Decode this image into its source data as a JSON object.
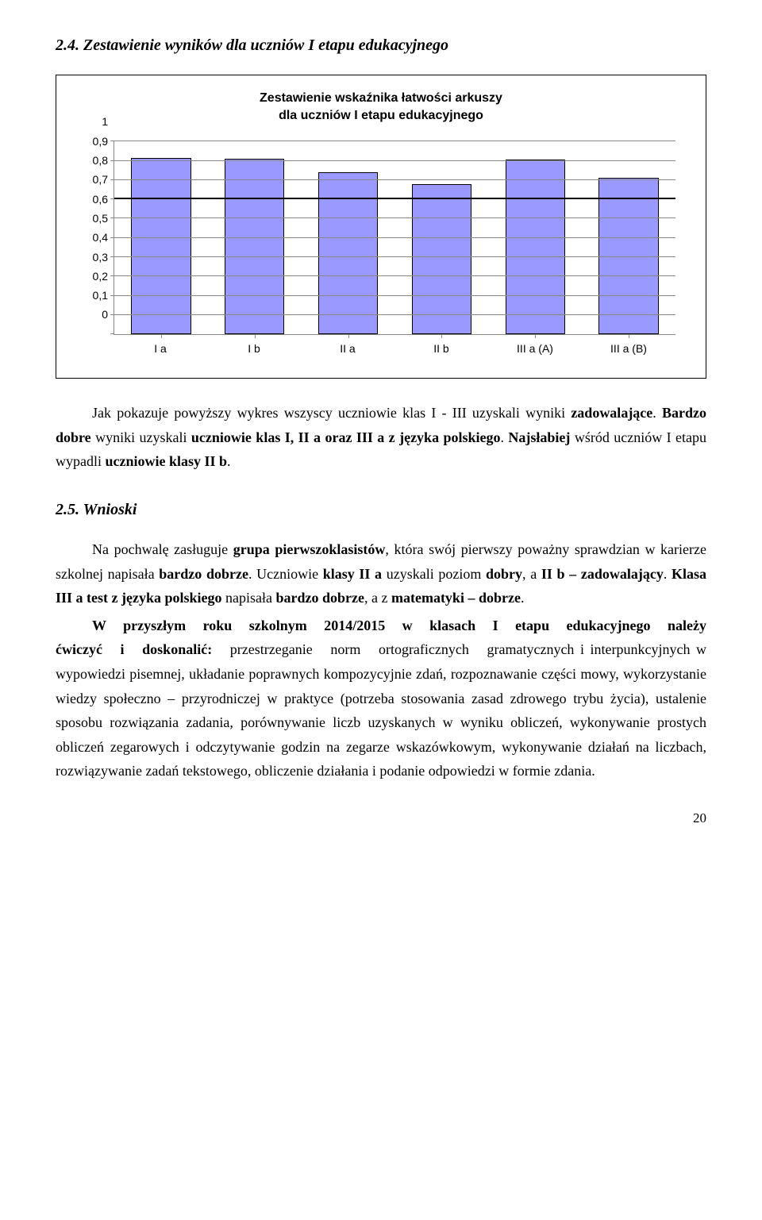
{
  "section_title": "2.4. Zestawienie wyników dla uczniów I etapu edukacyjnego",
  "chart": {
    "type": "bar",
    "title_line1": "Zestawienie wskaźnika łatwości arkuszy",
    "title_line2": "dla uczniów I etapu edukacyjnego",
    "categories": [
      "I a",
      "I b",
      "II a",
      "II b",
      "III a (A)",
      "III a (B)"
    ],
    "values": [
      0.915,
      0.91,
      0.84,
      0.78,
      0.905,
      0.81
    ],
    "bar_color": "#9999ff",
    "bar_border": "#000000",
    "ylim": [
      0,
      1
    ],
    "ytick_step": 0.1,
    "ytick_labels": [
      "0",
      "0,1",
      "0,2",
      "0,3",
      "0,4",
      "0,5",
      "0,6",
      "0,7",
      "0,8",
      "0,9",
      "1"
    ],
    "grid_color": "#888888",
    "target_line": 0.7,
    "target_line_color": "#000000",
    "background": "#ffffff",
    "title_fontsize": 16,
    "label_fontsize": 14
  },
  "para1": "Jak pokazuje powyższy wykres wszyscy uczniowie klas I - III uzyskali wyniki zadowalające. Bardzo dobre wyniki uzyskali uczniowie klas I, II a oraz III a z języka polskiego. Najsłabiej wśród uczniów I etapu wypadli uczniowie klasy II b.",
  "subsection_title": "2.5. Wnioski",
  "para2": "Na pochwalę zasługuje grupa pierwszoklasistów, która swój pierwszy poważny sprawdzian w karierze szkolnej napisała bardzo dobrze. Uczniowie klasy II a uzyskali poziom dobry, a II b – zadowalający. Klasa III a test z języka polskiego napisała bardzo dobrze, a z matematyki – dobrze.",
  "para3": "W przyszłym roku szkolnym 2014/2015 w klasach I etapu edukacyjnego należy ćwiczyć i doskonalić: przestrzeganie norm ortograficznych gramatycznych i interpunkcyjnych w wypowiedzi pisemnej, układanie poprawnych kompozycyjnie zdań, rozpoznawanie części mowy, wykorzystanie wiedzy społeczno – przyrodniczej w praktyce (potrzeba stosowania zasad zdrowego trybu życia), ustalenie sposobu rozwiązania zadania, porównywanie liczb uzyskanych w wyniku obliczeń, wykonywanie prostych obliczeń zegarowych i odczytywanie godzin na zegarze wskazówkowym, wykonywanie działań na liczbach, rozwiązywanie zadań tekstowego, obliczenie działania i podanie odpowiedzi w formie zdania.",
  "page_number": "20"
}
